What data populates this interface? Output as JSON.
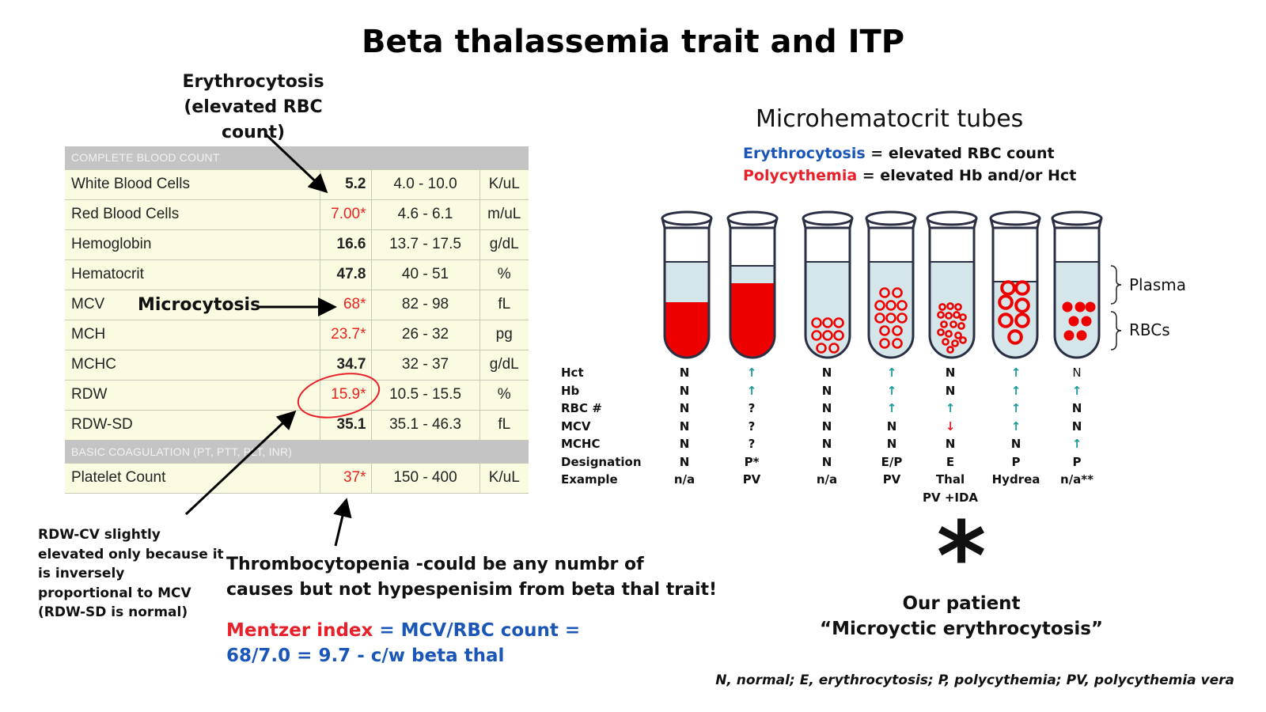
{
  "title": "Beta thalassemia trait and ITP",
  "annotations": {
    "erythrocytosis_line1": "Erythrocytosis",
    "erythrocytosis_line2": "(elevated RBC count)",
    "microcytosis": "Microcytosis",
    "rdw_lines": [
      "RDW-CV slightly",
      "elevated only because it",
      "is inversely",
      "proportional to MCV",
      "(RDW-SD is normal)"
    ],
    "thrombocytopenia_line1": "Thrombocytopenia -could be any numbr of",
    "thrombocytopenia_line2": "causes but not hypespenisim from beta thal trait!",
    "mentzer_label": "Mentzer index",
    "mentzer_formula": " = MCV/RBC count =",
    "mentzer_result": "68/7.0 = 9.7 - c/w beta thal"
  },
  "cbc": {
    "header": "COMPLETE BLOOD COUNT",
    "rows": [
      {
        "name": "White Blood Cells",
        "value": "5.2",
        "range": "4.0 - 10.0",
        "unit": "K/uL"
      },
      {
        "name": "Red Blood Cells",
        "value": "7.00*",
        "range": "4.6 - 6.1",
        "unit": "m/uL"
      },
      {
        "name": "Hemoglobin",
        "value": "16.6",
        "range": "13.7 - 17.5",
        "unit": "g/dL"
      },
      {
        "name": "Hematocrit",
        "value": "47.8",
        "range": "40 - 51",
        "unit": "%"
      },
      {
        "name": "MCV",
        "value": "68*",
        "range": "82 - 98",
        "unit": "fL"
      },
      {
        "name": "MCH",
        "value": "23.7*",
        "range": "26 - 32",
        "unit": "pg"
      },
      {
        "name": "MCHC",
        "value": "34.7",
        "range": "32 - 37",
        "unit": "g/dL"
      },
      {
        "name": "RDW",
        "value": "15.9*",
        "range": "10.5 - 15.5",
        "unit": "%"
      },
      {
        "name": "RDW-SD",
        "value": "35.1",
        "range": "35.1 - 46.3",
        "unit": "fL"
      }
    ],
    "coag_header": "BASIC COAGULATION (PT, PTT, PLT, INR)",
    "coag_rows": [
      {
        "name": "Platelet Count",
        "value": "37*",
        "range": "150 - 400",
        "unit": "K/uL"
      }
    ]
  },
  "tubes": {
    "title": "Microhematocrit tubes",
    "def1_term": "Erythrocytosis",
    "def1_rest": " = elevated RBC count",
    "def2_term": "Polycythemia",
    "def2_rest": " = elevated Hb and/or Hct",
    "plasma_label": "Plasma",
    "rbcs_label": "RBCs",
    "row_labels": [
      "Hct",
      "Hb",
      "RBC #",
      "MCV",
      "MCHC",
      "Designation",
      "Example"
    ],
    "columns": [
      {
        "Hct": "N",
        "Hb": "N",
        "RBC": "N",
        "MCV": "N",
        "MCHC": "N",
        "Designation": "N",
        "Example": "n/a"
      },
      {
        "Hct": "↑",
        "Hb": "↑",
        "RBC": "?",
        "MCV": "?",
        "MCHC": "?",
        "Designation": "P*",
        "Example": "PV"
      },
      {
        "Hct": "N",
        "Hb": "N",
        "RBC": "N",
        "MCV": "N",
        "MCHC": "N",
        "Designation": "N",
        "Example": "n/a"
      },
      {
        "Hct": "↑",
        "Hb": "↑",
        "RBC": "↑",
        "MCV": "N",
        "MCHC": "N",
        "Designation": "E/P",
        "Example": "PV"
      },
      {
        "Hct": "N",
        "Hb": "N",
        "RBC": "↑",
        "MCV": "↓",
        "MCHC": "N",
        "Designation": "E",
        "Example": "Thal",
        "Example2": "PV +IDA"
      },
      {
        "Hct": "↑",
        "Hb": "↑",
        "RBC": "↑",
        "MCV": "↑",
        "MCHC": "N",
        "Designation": "P",
        "Example": "Hydrea"
      },
      {
        "Hct": "N",
        "Hb": "↑",
        "RBC": "N",
        "MCV": "N",
        "MCHC": "↑",
        "Designation": "P",
        "Example": "n/a**"
      }
    ]
  },
  "patient": {
    "asterisk": "*",
    "line1": "Our patient",
    "line2": "“Microyctic erythrocytosis”"
  },
  "footnote": "N, normal; E, erythrocytosis; P, polycythemia; PV, polycythemia vera",
  "colors": {
    "accent_red": "#e8202a",
    "accent_blue": "#1a56b8",
    "arrow_teal": "#1a9a9a",
    "plasma": "#d5e6ea",
    "blood": "#ee0000"
  }
}
